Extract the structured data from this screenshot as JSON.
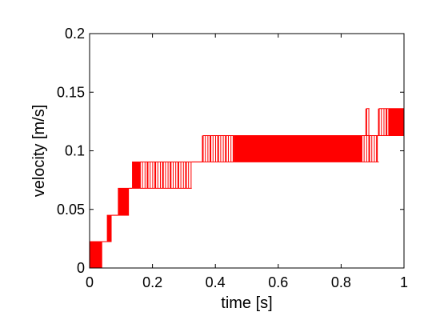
{
  "chart_data": {
    "type": "line",
    "title": "",
    "xlabel": "time [s]",
    "ylabel": "velocity [m/s]",
    "xlim": [
      0,
      1
    ],
    "ylim": [
      0,
      0.2
    ],
    "xticks": [
      0,
      0.2,
      0.4,
      0.6,
      0.8,
      1
    ],
    "xtick_labels": [
      "0",
      "0.2",
      "0.4",
      "0.6",
      "0.8",
      "1"
    ],
    "yticks": [
      0,
      0.05,
      0.1,
      0.15,
      0.2
    ],
    "ytick_labels": [
      "0",
      "0.05",
      "0.1",
      "0.15",
      "0.2"
    ],
    "grid": false,
    "series": [
      {
        "color": "#ff0000",
        "segments": [
          {
            "x0": 0.0,
            "x1": 0.04,
            "low": 0.0,
            "high": 0.0225,
            "fill": "dense"
          },
          {
            "x0": 0.04,
            "x1": 0.055,
            "low": 0.0225,
            "high": 0.0225,
            "fill": "none"
          },
          {
            "x0": 0.055,
            "x1": 0.07,
            "low": 0.0225,
            "high": 0.045,
            "fill": "dense"
          },
          {
            "x0": 0.07,
            "x1": 0.09,
            "low": 0.045,
            "high": 0.045,
            "fill": "none"
          },
          {
            "x0": 0.09,
            "x1": 0.125,
            "low": 0.045,
            "high": 0.068,
            "fill": "dense"
          },
          {
            "x0": 0.125,
            "x1": 0.135,
            "low": 0.068,
            "high": 0.068,
            "fill": "none"
          },
          {
            "x0": 0.135,
            "x1": 0.16,
            "low": 0.068,
            "high": 0.0905,
            "fill": "dense"
          },
          {
            "x0": 0.16,
            "x1": 0.325,
            "low": 0.068,
            "high": 0.0905,
            "fill": "sparse"
          },
          {
            "x0": 0.325,
            "x1": 0.36,
            "low": 0.0905,
            "high": 0.0905,
            "fill": "none"
          },
          {
            "x0": 0.36,
            "x1": 0.46,
            "low": 0.0905,
            "high": 0.113,
            "fill": "sparse"
          },
          {
            "x0": 0.46,
            "x1": 0.865,
            "low": 0.0905,
            "high": 0.113,
            "fill": "dense"
          },
          {
            "x0": 0.865,
            "x1": 0.92,
            "low": 0.0905,
            "high": 0.113,
            "fill": "sparse"
          },
          {
            "x0": 0.88,
            "x1": 0.89,
            "low": 0.113,
            "high": 0.136,
            "fill": "sparse"
          },
          {
            "x0": 0.92,
            "x1": 0.95,
            "low": 0.113,
            "high": 0.136,
            "fill": "sparse"
          },
          {
            "x0": 0.95,
            "x1": 1.0,
            "low": 0.113,
            "high": 0.136,
            "fill": "dense"
          }
        ]
      }
    ]
  }
}
